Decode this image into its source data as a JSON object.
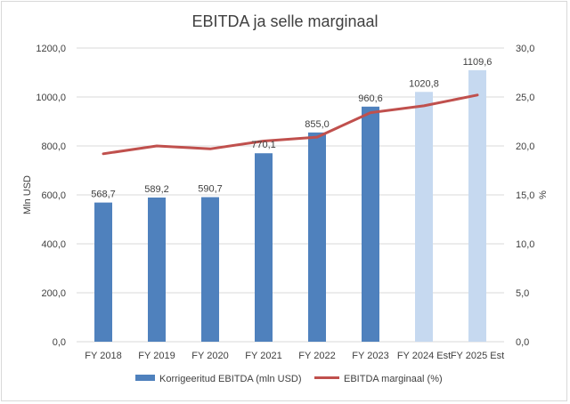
{
  "chart_data": {
    "type": "bar",
    "title": "EBITDA ja selle marginaal",
    "categories": [
      "FY 2018",
      "FY 2019",
      "FY 2020",
      "FY 2021",
      "FY 2022",
      "FY 2023",
      "FY 2024 Est",
      "FY 2025 Est"
    ],
    "series": [
      {
        "name": "Korrigeeritud EBITDA (mln USD)",
        "type": "bar",
        "axis": "left",
        "values": [
          568.7,
          589.2,
          590.7,
          770.1,
          855.0,
          960.6,
          1020.8,
          1109.6
        ],
        "labels": [
          "568,7",
          "589,2",
          "590,7",
          "770,1",
          "855,0",
          "960,6",
          "1020,8",
          "1109,6"
        ],
        "colors": [
          "#4f81bd",
          "#4f81bd",
          "#4f81bd",
          "#4f81bd",
          "#4f81bd",
          "#4f81bd",
          "#c6d9f0",
          "#c6d9f0"
        ]
      },
      {
        "name": "EBITDA marginaal (%)",
        "type": "line",
        "axis": "right",
        "values": [
          19.2,
          20.0,
          19.7,
          20.5,
          20.9,
          23.4,
          24.1,
          25.2
        ],
        "color": "#c0504d"
      }
    ],
    "ylabel": "Mln USD",
    "y2label": "%",
    "ylim": [
      0,
      1200
    ],
    "y2lim": [
      0,
      30
    ],
    "yticks": [
      "0,0",
      "200,0",
      "400,0",
      "600,0",
      "800,0",
      "1000,0",
      "1200,0"
    ],
    "y2ticks": [
      "0,0",
      "5,0",
      "10,0",
      "15,0",
      "20,0",
      "25,0",
      "30,0"
    ],
    "grid": true,
    "legend_position": "bottom"
  }
}
